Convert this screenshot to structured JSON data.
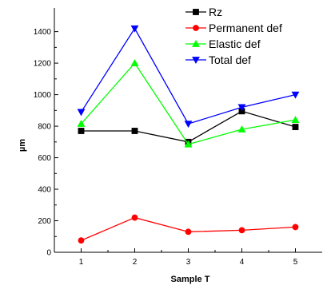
{
  "chart_data": {
    "type": "line",
    "title": "",
    "xlabel": "Sample T",
    "ylabel": "µm",
    "x": [
      1,
      2,
      3,
      4,
      5
    ],
    "x_tick_labels": [
      "1",
      "2",
      "3",
      "4",
      "5"
    ],
    "xlim": [
      0.5,
      5.5
    ],
    "ylim": [
      0,
      1550
    ],
    "y_ticks": [
      0,
      200,
      400,
      600,
      800,
      1000,
      1200,
      1400
    ],
    "y_tick_labels": [
      "0",
      "200",
      "400",
      "600",
      "800",
      "1000",
      "1200",
      "1400"
    ],
    "grid": false,
    "legend_position": "top-right",
    "series": [
      {
        "name": "Rz",
        "color": "#000000",
        "marker": "square",
        "values": [
          770,
          770,
          700,
          895,
          795
        ]
      },
      {
        "name": "Permanent def",
        "color": "#ff0000",
        "marker": "circle",
        "values": [
          75,
          220,
          130,
          140,
          160
        ]
      },
      {
        "name": "Elastic def",
        "color": "#00ff00",
        "marker": "triangle-up",
        "values": [
          815,
          1200,
          685,
          780,
          840
        ]
      },
      {
        "name": "Total def",
        "color": "#0000ff",
        "marker": "triangle-down",
        "values": [
          890,
          1420,
          815,
          920,
          1000
        ]
      }
    ]
  }
}
